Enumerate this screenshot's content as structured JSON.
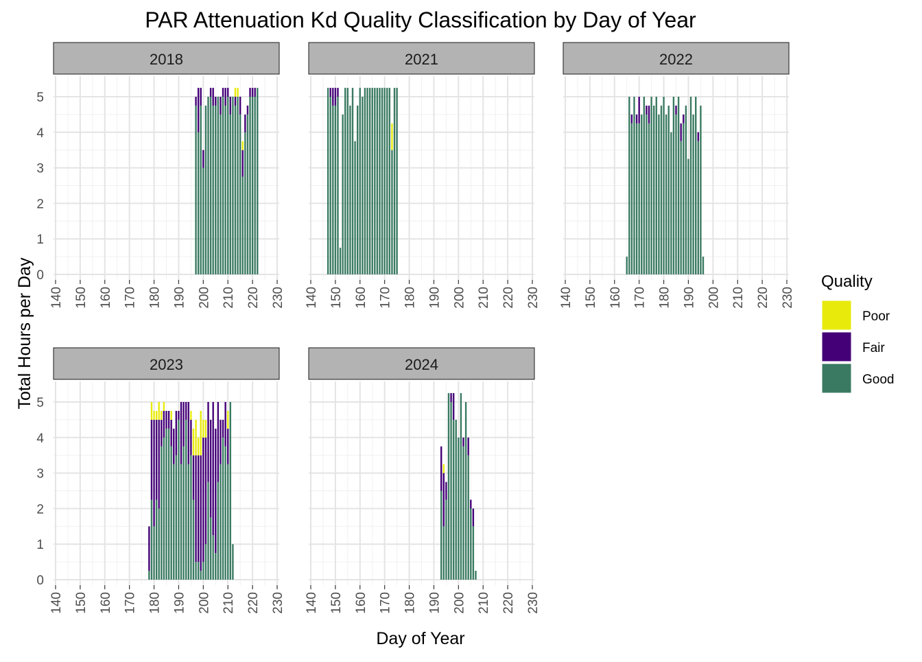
{
  "chart_data": {
    "type": "bar",
    "stacked": true,
    "title": "PAR Attenuation Kd Quality Classification by Day of Year",
    "xlabel": "Day of Year",
    "ylabel": "Total Hours per Day",
    "xlim": [
      140,
      230
    ],
    "ylim": [
      0,
      5.25
    ],
    "x_ticks": [
      140,
      150,
      160,
      170,
      180,
      190,
      200,
      210,
      220,
      230
    ],
    "y_ticks": [
      0,
      1,
      2,
      3,
      4,
      5
    ],
    "grid": true,
    "legend": {
      "title": "Quality",
      "placement": "right",
      "entries": [
        {
          "label": "Poor",
          "color": "#E8EA0C"
        },
        {
          "label": "Fair",
          "color": "#440077"
        },
        {
          "label": "Good",
          "color": "#3A7A62"
        }
      ]
    },
    "series_order": [
      "Good",
      "Fair",
      "Poor"
    ],
    "colors": {
      "Good": "#3A7A62",
      "Fair": "#440077",
      "Poor": "#E8EA0C"
    },
    "panels": [
      {
        "label": "2018",
        "days": [
          {
            "x": 197,
            "good": 4.75,
            "fair": 0.25,
            "poor": 0
          },
          {
            "x": 198,
            "good": 4.0,
            "fair": 1.25,
            "poor": 0
          },
          {
            "x": 199,
            "good": 4.75,
            "fair": 0.5,
            "poor": 0
          },
          {
            "x": 200,
            "good": 3.0,
            "fair": 0.5,
            "poor": 0
          },
          {
            "x": 201,
            "good": 4.75,
            "fair": 0,
            "poor": 0
          },
          {
            "x": 202,
            "good": 5.0,
            "fair": 0,
            "poor": 0
          },
          {
            "x": 203,
            "good": 5.0,
            "fair": 0.25,
            "poor": 0
          },
          {
            "x": 204,
            "good": 4.75,
            "fair": 0.5,
            "poor": 0
          },
          {
            "x": 205,
            "good": 4.75,
            "fair": 0.25,
            "poor": 0
          },
          {
            "x": 206,
            "good": 5.0,
            "fair": 0,
            "poor": 0
          },
          {
            "x": 207,
            "good": 4.5,
            "fair": 0.5,
            "poor": 0
          },
          {
            "x": 208,
            "good": 5.0,
            "fair": 0.25,
            "poor": 0
          },
          {
            "x": 209,
            "good": 4.75,
            "fair": 0.5,
            "poor": 0
          },
          {
            "x": 210,
            "good": 5.0,
            "fair": 0.25,
            "poor": 0
          },
          {
            "x": 211,
            "good": 4.5,
            "fair": 0.5,
            "poor": 0
          },
          {
            "x": 212,
            "good": 5.0,
            "fair": 0,
            "poor": 0
          },
          {
            "x": 213,
            "good": 4.75,
            "fair": 0.25,
            "poor": 0.25
          },
          {
            "x": 214,
            "good": 5.0,
            "fair": 0,
            "poor": 0.25
          },
          {
            "x": 215,
            "good": 4.5,
            "fair": 0.5,
            "poor": 0
          },
          {
            "x": 216,
            "good": 2.75,
            "fair": 0.75,
            "poor": 0.25
          },
          {
            "x": 217,
            "good": 4.0,
            "fair": 0.5,
            "poor": 0
          },
          {
            "x": 218,
            "good": 4.5,
            "fair": 0.25,
            "poor": 0
          },
          {
            "x": 219,
            "good": 5.0,
            "fair": 0.25,
            "poor": 0
          },
          {
            "x": 220,
            "good": 5.0,
            "fair": 0.25,
            "poor": 0
          },
          {
            "x": 221,
            "good": 5.0,
            "fair": 0.25,
            "poor": 0
          },
          {
            "x": 222,
            "good": 5.25,
            "fair": 0,
            "poor": 0
          }
        ]
      },
      {
        "label": "2021",
        "days": [
          {
            "x": 147,
            "good": 5.25,
            "fair": 0,
            "poor": 0
          },
          {
            "x": 148,
            "good": 5.0,
            "fair": 0.25,
            "poor": 0
          },
          {
            "x": 149,
            "good": 4.75,
            "fair": 0.5,
            "poor": 0
          },
          {
            "x": 150,
            "good": 4.75,
            "fair": 0.5,
            "poor": 0
          },
          {
            "x": 151,
            "good": 5.0,
            "fair": 0.25,
            "poor": 0
          },
          {
            "x": 152,
            "good": 0.75,
            "fair": 0,
            "poor": 0
          },
          {
            "x": 153,
            "good": 4.5,
            "fair": 0,
            "poor": 0
          },
          {
            "x": 154,
            "good": 5.25,
            "fair": 0,
            "poor": 0
          },
          {
            "x": 155,
            "good": 5.25,
            "fair": 0,
            "poor": 0
          },
          {
            "x": 156,
            "good": 4.75,
            "fair": 0,
            "poor": 0
          },
          {
            "x": 157,
            "good": 5.25,
            "fair": 0,
            "poor": 0
          },
          {
            "x": 158,
            "good": 3.75,
            "fair": 0,
            "poor": 0
          },
          {
            "x": 159,
            "good": 4.75,
            "fair": 0,
            "poor": 0
          },
          {
            "x": 160,
            "good": 5.25,
            "fair": 0,
            "poor": 0
          },
          {
            "x": 161,
            "good": 5.0,
            "fair": 0,
            "poor": 0
          },
          {
            "x": 162,
            "good": 5.25,
            "fair": 0,
            "poor": 0
          },
          {
            "x": 163,
            "good": 5.25,
            "fair": 0,
            "poor": 0
          },
          {
            "x": 164,
            "good": 5.25,
            "fair": 0,
            "poor": 0
          },
          {
            "x": 165,
            "good": 5.25,
            "fair": 0,
            "poor": 0
          },
          {
            "x": 166,
            "good": 5.25,
            "fair": 0,
            "poor": 0
          },
          {
            "x": 167,
            "good": 5.25,
            "fair": 0,
            "poor": 0
          },
          {
            "x": 168,
            "good": 5.25,
            "fair": 0,
            "poor": 0
          },
          {
            "x": 169,
            "good": 5.25,
            "fair": 0,
            "poor": 0
          },
          {
            "x": 170,
            "good": 5.25,
            "fair": 0,
            "poor": 0
          },
          {
            "x": 171,
            "good": 5.25,
            "fair": 0,
            "poor": 0
          },
          {
            "x": 172,
            "good": 5.25,
            "fair": 0,
            "poor": 0
          },
          {
            "x": 173,
            "good": 3.5,
            "fair": 0,
            "poor": 0.75
          },
          {
            "x": 174,
            "good": 5.25,
            "fair": 0,
            "poor": 0
          },
          {
            "x": 175,
            "good": 5.25,
            "fair": 0,
            "poor": 0
          }
        ]
      },
      {
        "label": "2022",
        "days": [
          {
            "x": 165,
            "good": 0.5,
            "fair": 0,
            "poor": 0
          },
          {
            "x": 166,
            "good": 5.0,
            "fair": 0,
            "poor": 0
          },
          {
            "x": 167,
            "good": 4.25,
            "fair": 0.25,
            "poor": 0
          },
          {
            "x": 168,
            "good": 5.0,
            "fair": 0,
            "poor": 0
          },
          {
            "x": 169,
            "good": 4.25,
            "fair": 0.25,
            "poor": 0
          },
          {
            "x": 170,
            "good": 4.25,
            "fair": 0.75,
            "poor": 0
          },
          {
            "x": 171,
            "good": 4.5,
            "fair": 0,
            "poor": 0
          },
          {
            "x": 172,
            "good": 5.0,
            "fair": 0,
            "poor": 0
          },
          {
            "x": 173,
            "good": 4.5,
            "fair": 0.25,
            "poor": 0
          },
          {
            "x": 174,
            "good": 4.25,
            "fair": 0.5,
            "poor": 0
          },
          {
            "x": 175,
            "good": 5.0,
            "fair": 0,
            "poor": 0
          },
          {
            "x": 176,
            "good": 4.75,
            "fair": 0,
            "poor": 0
          },
          {
            "x": 177,
            "good": 5.0,
            "fair": 0,
            "poor": 0
          },
          {
            "x": 178,
            "good": 4.5,
            "fair": 0,
            "poor": 0
          },
          {
            "x": 179,
            "good": 4.75,
            "fair": 0,
            "poor": 0
          },
          {
            "x": 180,
            "good": 5.0,
            "fair": 0,
            "poor": 0
          },
          {
            "x": 181,
            "good": 4.5,
            "fair": 0,
            "poor": 0
          },
          {
            "x": 182,
            "good": 4.75,
            "fair": 0,
            "poor": 0
          },
          {
            "x": 183,
            "good": 4.0,
            "fair": 0,
            "poor": 0
          },
          {
            "x": 184,
            "good": 5.0,
            "fair": 0,
            "poor": 0
          },
          {
            "x": 185,
            "good": 4.5,
            "fair": 0.25,
            "poor": 0
          },
          {
            "x": 186,
            "good": 5.0,
            "fair": 0,
            "poor": 0
          },
          {
            "x": 187,
            "good": 3.75,
            "fair": 0.5,
            "poor": 0
          },
          {
            "x": 188,
            "good": 4.25,
            "fair": 0.25,
            "poor": 0
          },
          {
            "x": 189,
            "good": 4.75,
            "fair": 0,
            "poor": 0
          },
          {
            "x": 190,
            "good": 3.25,
            "fair": 0,
            "poor": 0
          },
          {
            "x": 191,
            "good": 5.0,
            "fair": 0,
            "poor": 0
          },
          {
            "x": 192,
            "good": 4.5,
            "fair": 0,
            "poor": 0
          },
          {
            "x": 193,
            "good": 5.0,
            "fair": 0,
            "poor": 0
          },
          {
            "x": 194,
            "good": 3.75,
            "fair": 0.25,
            "poor": 0
          },
          {
            "x": 195,
            "good": 4.75,
            "fair": 0,
            "poor": 0
          },
          {
            "x": 196,
            "good": 0.5,
            "fair": 0,
            "poor": 0
          }
        ]
      },
      {
        "label": "2023",
        "days": [
          {
            "x": 178,
            "good": 0.25,
            "fair": 1.25,
            "poor": 0
          },
          {
            "x": 179,
            "good": 2.25,
            "fair": 2.25,
            "poor": 0.5
          },
          {
            "x": 180,
            "good": 1.5,
            "fair": 3.0,
            "poor": 0.25
          },
          {
            "x": 181,
            "good": 2.25,
            "fair": 2.25,
            "poor": 0.25
          },
          {
            "x": 182,
            "good": 2.0,
            "fair": 2.5,
            "poor": 0.5
          },
          {
            "x": 183,
            "good": 3.75,
            "fair": 0.75,
            "poor": 0.25
          },
          {
            "x": 184,
            "good": 4.0,
            "fair": 0.75,
            "poor": 0.25
          },
          {
            "x": 185,
            "good": 4.25,
            "fair": 0.5,
            "poor": 0
          },
          {
            "x": 186,
            "good": 4.25,
            "fair": 0.5,
            "poor": 0
          },
          {
            "x": 187,
            "good": 3.75,
            "fair": 0.75,
            "poor": 0.25
          },
          {
            "x": 188,
            "good": 3.25,
            "fair": 1.0,
            "poor": 0
          },
          {
            "x": 189,
            "good": 3.5,
            "fair": 1.25,
            "poor": 0
          },
          {
            "x": 190,
            "good": 4.5,
            "fair": 0.25,
            "poor": 0
          },
          {
            "x": 191,
            "good": 3.25,
            "fair": 1.75,
            "poor": 0
          },
          {
            "x": 192,
            "good": 3.75,
            "fair": 1.25,
            "poor": 0
          },
          {
            "x": 193,
            "good": 4.5,
            "fair": 0.5,
            "poor": 0
          },
          {
            "x": 194,
            "good": 3.25,
            "fair": 1.75,
            "poor": 0
          },
          {
            "x": 195,
            "good": 3.5,
            "fair": 1.0,
            "poor": 0.25
          },
          {
            "x": 196,
            "good": 2.25,
            "fair": 1.25,
            "poor": 0.75
          },
          {
            "x": 197,
            "good": 0.5,
            "fair": 3.0,
            "poor": 1.0
          },
          {
            "x": 198,
            "good": 0.5,
            "fair": 3.0,
            "poor": 0.5
          },
          {
            "x": 199,
            "good": 0.25,
            "fair": 3.25,
            "poor": 1.25
          },
          {
            "x": 200,
            "good": 0.5,
            "fair": 3.5,
            "poor": 0.5
          },
          {
            "x": 201,
            "good": 1.0,
            "fair": 3.0,
            "poor": 0.5
          },
          {
            "x": 202,
            "good": 2.75,
            "fair": 2.25,
            "poor": 0
          },
          {
            "x": 203,
            "good": 1.75,
            "fair": 2.75,
            "poor": 0
          },
          {
            "x": 204,
            "good": 1.25,
            "fair": 3.75,
            "poor": 0
          },
          {
            "x": 205,
            "good": 0.75,
            "fair": 3.5,
            "poor": 0
          },
          {
            "x": 206,
            "good": 2.75,
            "fair": 2.25,
            "poor": 0
          },
          {
            "x": 207,
            "good": 3.25,
            "fair": 1.25,
            "poor": 0
          },
          {
            "x": 208,
            "good": 4.0,
            "fair": 0.5,
            "poor": 0
          },
          {
            "x": 209,
            "good": 3.75,
            "fair": 1.25,
            "poor": 0
          },
          {
            "x": 210,
            "good": 3.25,
            "fair": 1.0,
            "poor": 0.5
          },
          {
            "x": 211,
            "good": 5.0,
            "fair": 0,
            "poor": 0
          },
          {
            "x": 212,
            "good": 1.0,
            "fair": 0,
            "poor": 0
          }
        ]
      },
      {
        "label": "2024",
        "days": [
          {
            "x": 193,
            "good": 2.5,
            "fair": 1.25,
            "poor": 0
          },
          {
            "x": 194,
            "good": 1.5,
            "fair": 1.5,
            "poor": 0.25
          },
          {
            "x": 195,
            "good": 2.25,
            "fair": 0.5,
            "poor": 0
          },
          {
            "x": 196,
            "good": 5.25,
            "fair": 0,
            "poor": 0
          },
          {
            "x": 197,
            "good": 5.0,
            "fair": 0.25,
            "poor": 0
          },
          {
            "x": 198,
            "good": 4.5,
            "fair": 0.75,
            "poor": 0
          },
          {
            "x": 199,
            "good": 4.5,
            "fair": 0,
            "poor": 0
          },
          {
            "x": 200,
            "good": 4.0,
            "fair": 0,
            "poor": 0
          },
          {
            "x": 201,
            "good": 5.25,
            "fair": 0,
            "poor": 0
          },
          {
            "x": 202,
            "good": 3.75,
            "fair": 0.25,
            "poor": 0
          },
          {
            "x": 203,
            "good": 5.0,
            "fair": 0,
            "poor": 0
          },
          {
            "x": 204,
            "good": 3.5,
            "fair": 0.5,
            "poor": 0
          },
          {
            "x": 205,
            "good": 2.0,
            "fair": 0.25,
            "poor": 0
          },
          {
            "x": 206,
            "good": 1.5,
            "fair": 0.5,
            "poor": 0
          },
          {
            "x": 207,
            "good": 0.25,
            "fair": 0,
            "poor": 0
          }
        ]
      }
    ]
  }
}
